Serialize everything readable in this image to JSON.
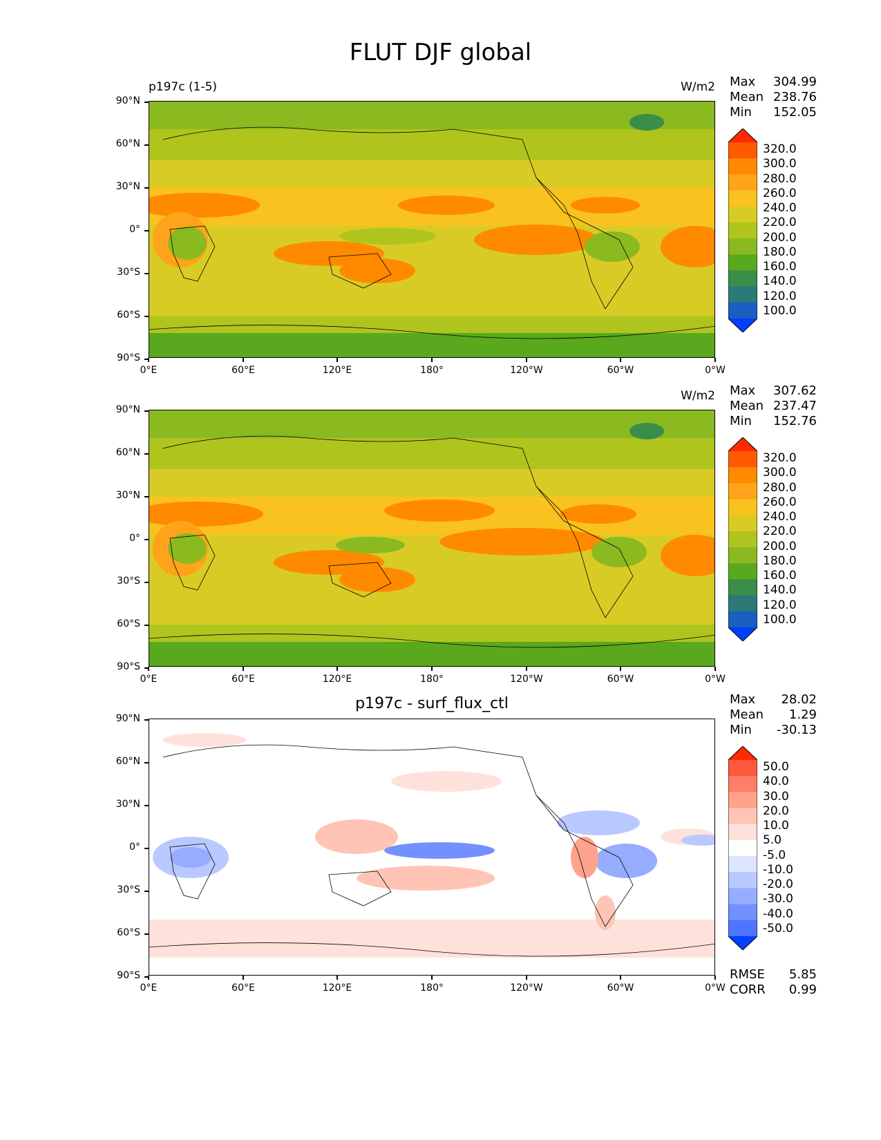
{
  "figure": {
    "title": "FLUT DJF global"
  },
  "axes": {
    "lat_labels": [
      "90°N",
      "60°N",
      "30°N",
      "0°",
      "30°S",
      "60°S",
      "90°S"
    ],
    "lon_labels": [
      "0°E",
      "60°E",
      "120°E",
      "180°",
      "120°W",
      "60°W",
      "0°W"
    ]
  },
  "panels": [
    {
      "left_title": "p197c (1-5)",
      "center_title": "",
      "right_title": "W/m2",
      "stats": [
        {
          "label": "Max",
          "value": "304.99"
        },
        {
          "label": "Mean",
          "value": "238.76"
        },
        {
          "label": "Min",
          "value": "152.05"
        }
      ],
      "colorbar": {
        "labels": [
          "320.0",
          "300.0",
          "280.0",
          "260.0",
          "240.0",
          "220.0",
          "200.0",
          "180.0",
          "160.0",
          "140.0",
          "120.0",
          "100.0"
        ],
        "colors": [
          "#ff2a00",
          "#ff5a00",
          "#ff8a00",
          "#ffa31a",
          "#f9c21e",
          "#d9cb25",
          "#b0c41e",
          "#8ab920",
          "#5aa81e",
          "#3a8e4a",
          "#2b7a78",
          "#1a5fc0",
          "#0040ff"
        ]
      }
    },
    {
      "left_title": "",
      "center_title": "",
      "right_title": "W/m2",
      "stats": [
        {
          "label": "Max",
          "value": "307.62"
        },
        {
          "label": "Mean",
          "value": "237.47"
        },
        {
          "label": "Min",
          "value": "152.76"
        }
      ],
      "colorbar": {
        "labels": [
          "320.0",
          "300.0",
          "280.0",
          "260.0",
          "240.0",
          "220.0",
          "200.0",
          "180.0",
          "160.0",
          "140.0",
          "120.0",
          "100.0"
        ],
        "colors": [
          "#ff2a00",
          "#ff5a00",
          "#ff8a00",
          "#ffa31a",
          "#f9c21e",
          "#d9cb25",
          "#b0c41e",
          "#8ab920",
          "#5aa81e",
          "#3a8e4a",
          "#2b7a78",
          "#1a5fc0",
          "#0040ff"
        ]
      }
    },
    {
      "left_title": "",
      "center_title": "p197c - surf_flux_ctl",
      "right_title": "",
      "stats": [
        {
          "label": "Max",
          "value": "28.02"
        },
        {
          "label": "Mean",
          "value": "1.29"
        },
        {
          "label": "Min",
          "value": "-30.13"
        }
      ],
      "colorbar": {
        "labels": [
          "50.0",
          "40.0",
          "30.0",
          "20.0",
          "10.0",
          "5.0",
          "-5.0",
          "-10.0",
          "-20.0",
          "-30.0",
          "-40.0",
          "-50.0"
        ],
        "colors": [
          "#ff2a00",
          "#ff5a3c",
          "#ff7f66",
          "#ffa38c",
          "#ffc4b5",
          "#ffe1db",
          "#ffffff",
          "#dce4ff",
          "#b9c8ff",
          "#96acff",
          "#7390ff",
          "#4f74ff",
          "#0040ff"
        ]
      },
      "bottom_stats": [
        {
          "label": "RMSE",
          "value": "5.85"
        },
        {
          "label": "CORR",
          "value": "0.99"
        }
      ]
    }
  ]
}
